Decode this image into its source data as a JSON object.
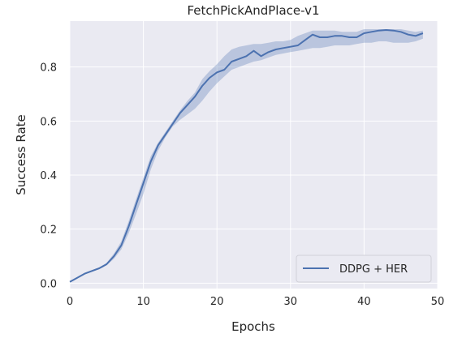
{
  "chart_data": {
    "type": "line",
    "title": "FetchPickAndPlace-v1",
    "xlabel": "Epochs",
    "ylabel": "Success Rate",
    "xlim": [
      0,
      50
    ],
    "ylim": [
      -0.02,
      0.97
    ],
    "xticks": [
      0,
      10,
      20,
      30,
      40,
      50
    ],
    "yticks": [
      0.0,
      0.2,
      0.4,
      0.6,
      0.8
    ],
    "grid": true,
    "legend_position": "lower-right",
    "colors": {
      "background": "#eaeaf2",
      "grid": "#ffffff",
      "line": "#4c72b0",
      "band": "#4c72b0"
    },
    "series": [
      {
        "name": "DDPG + HER",
        "x": [
          0,
          1,
          2,
          3,
          4,
          5,
          6,
          7,
          8,
          9,
          10,
          11,
          12,
          13,
          14,
          15,
          16,
          17,
          18,
          19,
          20,
          21,
          22,
          23,
          24,
          25,
          26,
          27,
          28,
          29,
          30,
          31,
          32,
          33,
          34,
          35,
          36,
          37,
          38,
          39,
          40,
          41,
          42,
          43,
          44,
          45,
          46,
          47,
          48
        ],
        "y": [
          0.005,
          0.02,
          0.035,
          0.045,
          0.055,
          0.07,
          0.1,
          0.14,
          0.21,
          0.29,
          0.37,
          0.45,
          0.51,
          0.55,
          0.59,
          0.63,
          0.66,
          0.69,
          0.73,
          0.76,
          0.78,
          0.79,
          0.82,
          0.83,
          0.84,
          0.86,
          0.84,
          0.855,
          0.865,
          0.87,
          0.875,
          0.88,
          0.9,
          0.92,
          0.91,
          0.91,
          0.915,
          0.915,
          0.91,
          0.91,
          0.925,
          0.93,
          0.935,
          0.937,
          0.935,
          0.93,
          0.92,
          0.915,
          0.925
        ],
        "lower": [
          0.005,
          0.018,
          0.032,
          0.042,
          0.052,
          0.066,
          0.09,
          0.125,
          0.185,
          0.255,
          0.33,
          0.42,
          0.49,
          0.54,
          0.58,
          0.605,
          0.625,
          0.645,
          0.675,
          0.71,
          0.74,
          0.765,
          0.79,
          0.8,
          0.81,
          0.82,
          0.825,
          0.835,
          0.845,
          0.85,
          0.855,
          0.86,
          0.865,
          0.87,
          0.87,
          0.875,
          0.88,
          0.88,
          0.88,
          0.885,
          0.89,
          0.89,
          0.895,
          0.895,
          0.89,
          0.89,
          0.89,
          0.895,
          0.905
        ],
        "upper": [
          0.008,
          0.022,
          0.038,
          0.048,
          0.058,
          0.075,
          0.11,
          0.155,
          0.23,
          0.31,
          0.39,
          0.47,
          0.52,
          0.56,
          0.6,
          0.64,
          0.675,
          0.705,
          0.755,
          0.785,
          0.81,
          0.84,
          0.865,
          0.875,
          0.88,
          0.885,
          0.885,
          0.89,
          0.895,
          0.895,
          0.9,
          0.915,
          0.925,
          0.935,
          0.935,
          0.935,
          0.935,
          0.93,
          0.93,
          0.93,
          0.94,
          0.94,
          0.94,
          0.94,
          0.94,
          0.94,
          0.935,
          0.93,
          0.935
        ]
      }
    ]
  }
}
